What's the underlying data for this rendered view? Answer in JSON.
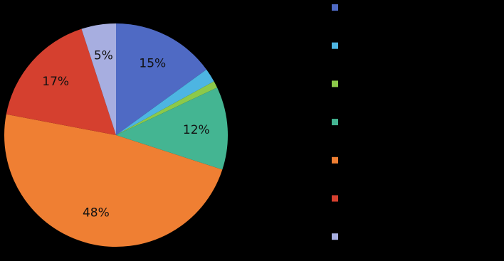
{
  "chart_data": {
    "type": "pie",
    "values": [
      15,
      2,
      1,
      12,
      48,
      17,
      5
    ],
    "value_labels": [
      "15%",
      null,
      null,
      "12%",
      "48%",
      "17%",
      "5%"
    ],
    "colors": [
      "#4f6ac4",
      "#4db5e2",
      "#8cc94a",
      "#44b592",
      "#ef7f33",
      "#d5402f",
      "#a7aee0"
    ]
  }
}
